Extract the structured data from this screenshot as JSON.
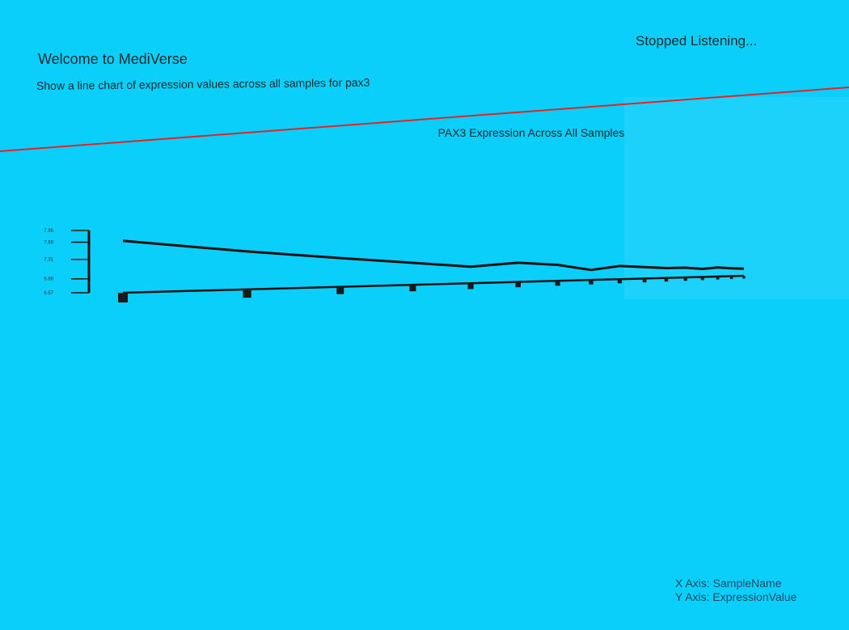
{
  "status": "Stopped Listening...",
  "header": {
    "title": "Welcome to MediVerse",
    "prompt": "Show a line chart of expression values across all samples for pax3"
  },
  "chart_data": {
    "type": "line",
    "title": "PAX3 Expression Across All Samples",
    "categories": [
      null,
      null,
      null,
      null,
      null,
      null,
      null,
      null,
      null,
      null,
      null,
      null,
      null,
      null,
      null,
      null
    ],
    "series": [
      {
        "name": "ExpressionValue",
        "color": "#111111",
        "values": [
          7.72,
          7.55,
          7.42,
          7.3,
          7.18,
          7.35,
          7.28,
          7.05,
          7.25,
          7.2,
          7.15,
          7.18,
          7.1,
          7.2,
          7.15,
          7.12
        ]
      }
    ],
    "ylim": [
      6.57,
      7.95
    ],
    "yticks": [
      6.57,
      6.88,
      7.31,
      7.69,
      7.95
    ]
  },
  "axis_info": {
    "x": "X Axis: SampleName",
    "y": "Y Axis: ExpressionValue"
  }
}
